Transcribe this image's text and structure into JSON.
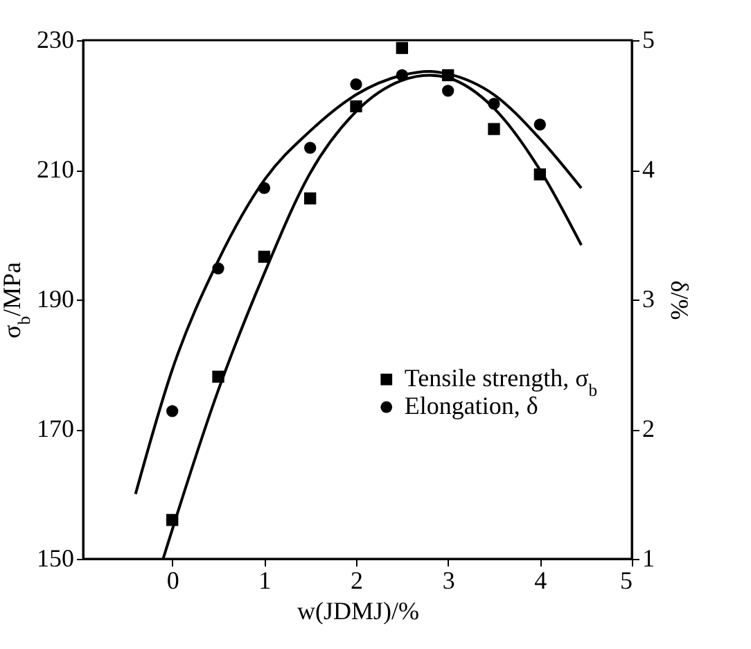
{
  "chart_data": {
    "type": "scatter",
    "xlabel": "w(JDMJ)/%",
    "ylabel": "σ$_{b}$/MPa",
    "y2label": "δ/%",
    "xlim": [
      -0.97,
      5
    ],
    "xticks": [
      0,
      1,
      2,
      3,
      4,
      5
    ],
    "ylim": [
      150,
      230
    ],
    "yticks": [
      150,
      170,
      190,
      210,
      230
    ],
    "y2lim": [
      1,
      5
    ],
    "y2ticks": [
      1,
      2,
      3,
      4,
      5
    ],
    "grid": false,
    "legend": "right",
    "series": [
      {
        "name": "Tensile strength, σ$_{b}$",
        "marker": "square",
        "color": "#000000",
        "x": [
          0,
          0.5,
          1,
          1.5,
          2,
          2.5,
          3,
          3.5,
          4
        ],
        "values": [
          156.0,
          178.1,
          196.6,
          205.6,
          219.8,
          228.8,
          224.6,
          216.3,
          209.3
        ]
      },
      {
        "name": "Elongation, δ",
        "marker": "circle",
        "axis": "y2",
        "color": "#000000",
        "x": [
          0,
          0.5,
          1,
          1.5,
          2,
          2.5,
          3,
          3.5,
          4
        ],
        "values": [
          2.14,
          3.24,
          3.86,
          4.17,
          4.66,
          4.73,
          4.61,
          4.51,
          4.35
        ]
      },
      {
        "type": "line",
        "color": "#000000",
        "line_style": "solid",
        "x": [
          -0.1,
          0.5,
          1,
          1.5,
          2,
          2.5,
          2.8,
          3,
          3.5,
          4,
          4.45
        ],
        "values": [
          150,
          176,
          194,
          209.5,
          219,
          223.8,
          224.6,
          224.2,
          219.5,
          210,
          198.4
        ]
      },
      {
        "type": "line",
        "color": "#000000",
        "line_style": "solid",
        "axis": "y2",
        "x": [
          -0.4,
          0,
          0.5,
          1,
          1.5,
          2,
          2.5,
          2.8,
          3,
          3.5,
          4,
          4.45
        ],
        "values": [
          1.5,
          2.46,
          3.3,
          3.92,
          4.3,
          4.58,
          4.73,
          4.76,
          4.74,
          4.58,
          4.24,
          3.86
        ]
      }
    ]
  }
}
